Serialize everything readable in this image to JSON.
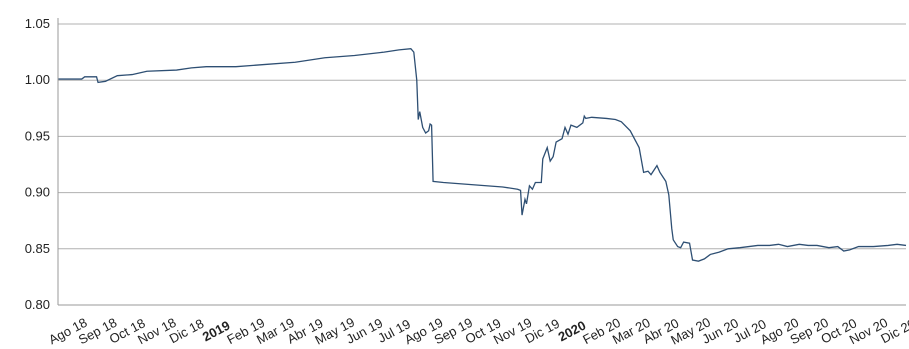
{
  "chart_data": {
    "type": "line",
    "title": "",
    "xlabel": "",
    "ylabel": "",
    "ylim": [
      0.8,
      1.05
    ],
    "yticks": [
      "0.80",
      "0.85",
      "0.90",
      "0.95",
      "1.00",
      "1.05"
    ],
    "grid": "horizontal",
    "legend": "none",
    "line_color": "#2e4f73",
    "x_labels": [
      {
        "label": "Ago 18",
        "bold": false
      },
      {
        "label": "Sep 18",
        "bold": false
      },
      {
        "label": "Oct 18",
        "bold": false
      },
      {
        "label": "Nov 18",
        "bold": false
      },
      {
        "label": "Dic 18",
        "bold": false
      },
      {
        "label": "2019",
        "bold": true
      },
      {
        "label": "Feb 19",
        "bold": false
      },
      {
        "label": "Mar 19",
        "bold": false
      },
      {
        "label": "Abr 19",
        "bold": false
      },
      {
        "label": "May 19",
        "bold": false
      },
      {
        "label": "Jun 19",
        "bold": false
      },
      {
        "label": "Jul 19",
        "bold": false
      },
      {
        "label": "Ago 19",
        "bold": false
      },
      {
        "label": "Sep 19",
        "bold": false
      },
      {
        "label": "Oct 19",
        "bold": false
      },
      {
        "label": "Nov 19",
        "bold": false
      },
      {
        "label": "Dic 19",
        "bold": false
      },
      {
        "label": "2020",
        "bold": true
      },
      {
        "label": "Feb 20",
        "bold": false
      },
      {
        "label": "Mar 20",
        "bold": false
      },
      {
        "label": "Abr 20",
        "bold": false
      },
      {
        "label": "May 20",
        "bold": false
      },
      {
        "label": "Jun 20",
        "bold": false
      },
      {
        "label": "Jul 20",
        "bold": false
      },
      {
        "label": "Ago 20",
        "bold": false
      },
      {
        "label": "Sep 20",
        "bold": false
      },
      {
        "label": "Oct 20",
        "bold": false
      },
      {
        "label": "Nov 20",
        "bold": false
      },
      {
        "label": "Dic 20",
        "bold": false
      }
    ],
    "series": [
      {
        "points": [
          [
            0,
            1.001
          ],
          [
            0.8,
            1.001
          ],
          [
            0.9,
            1.003
          ],
          [
            1.3,
            1.003
          ],
          [
            1.35,
            0.998
          ],
          [
            1.6,
            0.999
          ],
          [
            2.0,
            1.004
          ],
          [
            2.5,
            1.005
          ],
          [
            3.0,
            1.008
          ],
          [
            4.0,
            1.009
          ],
          [
            4.5,
            1.011
          ],
          [
            5.0,
            1.012
          ],
          [
            6.0,
            1.012
          ],
          [
            7.0,
            1.014
          ],
          [
            8.0,
            1.016
          ],
          [
            9.0,
            1.02
          ],
          [
            10.0,
            1.022
          ],
          [
            11.0,
            1.025
          ],
          [
            11.5,
            1.027
          ],
          [
            11.9,
            1.028
          ],
          [
            12.0,
            1.025
          ],
          [
            12.1,
            1.0
          ],
          [
            12.15,
            0.965
          ],
          [
            12.2,
            0.972
          ],
          [
            12.3,
            0.958
          ],
          [
            12.4,
            0.953
          ],
          [
            12.5,
            0.955
          ],
          [
            12.55,
            0.961
          ],
          [
            12.6,
            0.96
          ],
          [
            12.65,
            0.91
          ],
          [
            13.0,
            0.909
          ],
          [
            13.5,
            0.908
          ],
          [
            14.0,
            0.907
          ],
          [
            14.5,
            0.906
          ],
          [
            15.0,
            0.905
          ],
          [
            15.5,
            0.903
          ],
          [
            15.6,
            0.902
          ],
          [
            15.65,
            0.88
          ],
          [
            15.75,
            0.894
          ],
          [
            15.8,
            0.89
          ],
          [
            15.9,
            0.906
          ],
          [
            16.0,
            0.903
          ],
          [
            16.1,
            0.909
          ],
          [
            16.3,
            0.909
          ],
          [
            16.35,
            0.93
          ],
          [
            16.5,
            0.94
          ],
          [
            16.6,
            0.928
          ],
          [
            16.7,
            0.932
          ],
          [
            16.8,
            0.945
          ],
          [
            17.0,
            0.948
          ],
          [
            17.1,
            0.958
          ],
          [
            17.2,
            0.952
          ],
          [
            17.3,
            0.96
          ],
          [
            17.5,
            0.958
          ],
          [
            17.7,
            0.962
          ],
          [
            17.75,
            0.968
          ],
          [
            17.8,
            0.966
          ],
          [
            18.0,
            0.967
          ],
          [
            18.5,
            0.966
          ],
          [
            18.8,
            0.965
          ],
          [
            19.0,
            0.963
          ],
          [
            19.3,
            0.955
          ],
          [
            19.6,
            0.94
          ],
          [
            19.75,
            0.918
          ],
          [
            19.9,
            0.919
          ],
          [
            20.0,
            0.916
          ],
          [
            20.2,
            0.924
          ],
          [
            20.3,
            0.918
          ],
          [
            20.4,
            0.914
          ],
          [
            20.5,
            0.91
          ],
          [
            20.6,
            0.898
          ],
          [
            20.7,
            0.868
          ],
          [
            20.75,
            0.858
          ],
          [
            20.9,
            0.852
          ],
          [
            21.0,
            0.851
          ],
          [
            21.1,
            0.856
          ],
          [
            21.3,
            0.855
          ],
          [
            21.4,
            0.84
          ],
          [
            21.6,
            0.839
          ],
          [
            21.8,
            0.841
          ],
          [
            22.0,
            0.845
          ],
          [
            22.3,
            0.847
          ],
          [
            22.6,
            0.85
          ],
          [
            23.0,
            0.851
          ],
          [
            23.3,
            0.852
          ],
          [
            23.6,
            0.853
          ],
          [
            24.0,
            0.853
          ],
          [
            24.3,
            0.854
          ],
          [
            24.6,
            0.852
          ],
          [
            25.0,
            0.854
          ],
          [
            25.3,
            0.853
          ],
          [
            25.6,
            0.853
          ],
          [
            26.0,
            0.851
          ],
          [
            26.3,
            0.852
          ],
          [
            26.5,
            0.848
          ],
          [
            26.7,
            0.849
          ],
          [
            27.0,
            0.852
          ],
          [
            27.5,
            0.852
          ],
          [
            28.0,
            0.853
          ],
          [
            28.3,
            0.854
          ],
          [
            28.6,
            0.853
          ]
        ]
      }
    ]
  }
}
